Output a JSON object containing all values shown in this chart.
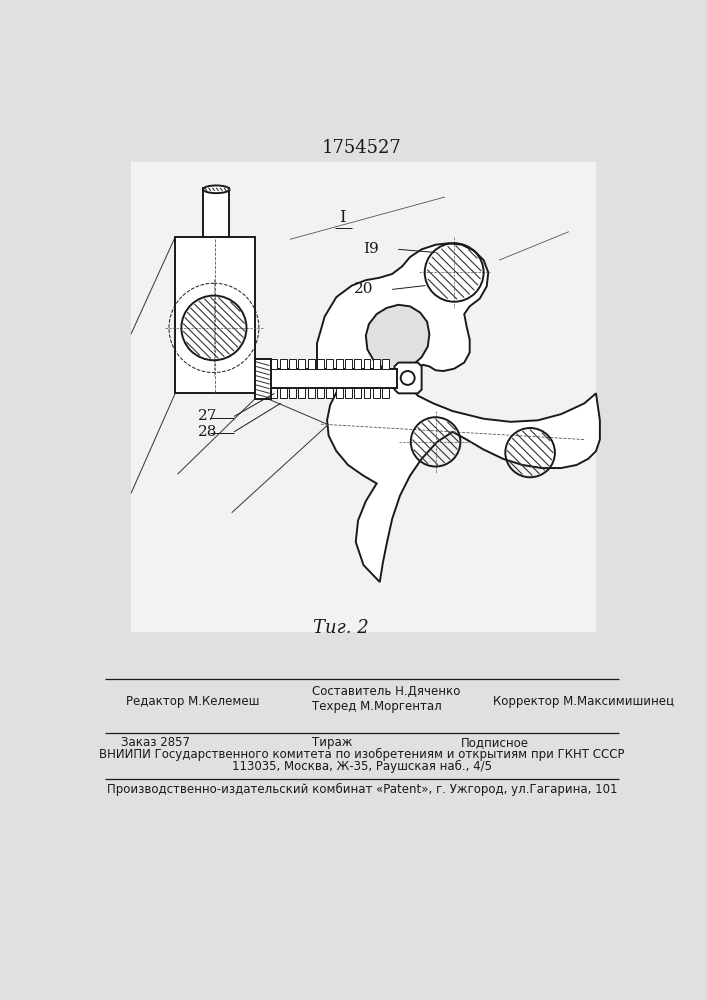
{
  "patent_number": "1754527",
  "fig_label": "Τиг. 2",
  "label_1": "I",
  "label_19": "I9",
  "label_20": "20",
  "label_27": "27",
  "label_28": "28",
  "bg_color": "#e0e0e0",
  "line_color": "#1a1a1a",
  "editor_line": "Редактор М.Келемеш",
  "composer_line1": "Составитель Н.Дяченко",
  "composer_line2": "Техред М.Моргентал",
  "corrector_line": "Корректор М.Максимишинец",
  "order_line": "Заказ 2857",
  "tirazh_line": "Тираж",
  "podpisnoe_line": "Подписное",
  "vnipi_line": "ВНИИПИ Государственного комитета по изобретениям и открытиям при ГКНТ СССР",
  "address_line": "113035, Москва, Ж-35, Раушская наб., 4/5",
  "publisher_line": "Производственно-издательский комбинат «Patent», г. Ужгород, ул.Гагарина, 101"
}
